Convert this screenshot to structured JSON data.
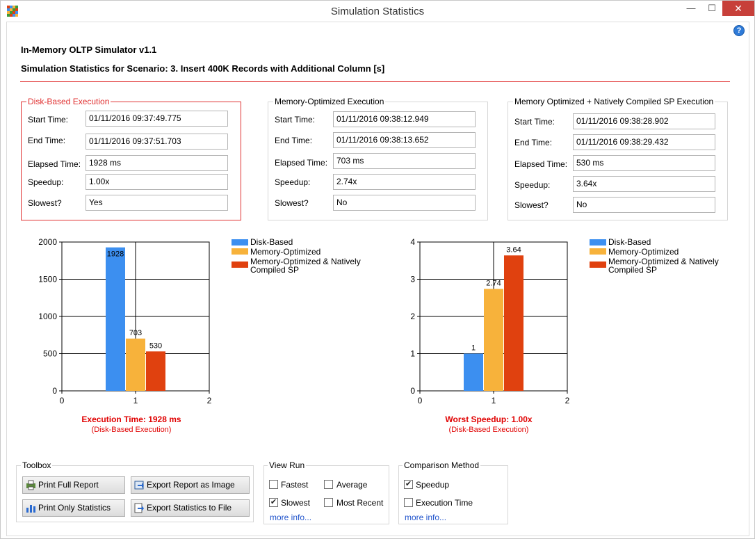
{
  "window": {
    "title": "Simulation Statistics",
    "min_glyph": "—",
    "max_glyph": "☐",
    "close_glyph": "✕"
  },
  "help_glyph": "?",
  "app_title": "In-Memory OLTP Simulator v1.1",
  "scenario_title": "Simulation Statistics for Scenario: 3. Insert 400K Records with Additional Column [s]",
  "labels": {
    "start": "Start Time:",
    "end": "End Time:",
    "elapsed": "Elapsed Time:",
    "speedup": "Speedup:",
    "slowest": "Slowest?"
  },
  "groups": [
    {
      "title": "Disk-Based Execution",
      "start": "01/11/2016 09:37:49.775",
      "end": "01/11/2016 09:37:51.703",
      "elapsed": "1928 ms",
      "speedup": "1.00x",
      "slowest": "Yes"
    },
    {
      "title": "Memory-Optimized Execution",
      "start": "01/11/2016 09:38:12.949",
      "end": "01/11/2016 09:38:13.652",
      "elapsed": "703 ms",
      "speedup": "2.74x",
      "slowest": "No"
    },
    {
      "title": "Memory Optimized + Natively Compiled  SP Execution",
      "start": "01/11/2016 09:38:28.902",
      "end": "01/11/2016 09:38:29.432",
      "elapsed": "530 ms",
      "speedup": "3.64x",
      "slowest": "No"
    }
  ],
  "colors": {
    "disk": "#3c8ff0",
    "mem": "#f7b23b",
    "native": "#e0410f",
    "accent_red": "#e03030"
  },
  "legend": [
    "Disk-Based",
    "Memory-Optimized",
    "Memory-Optimized & Natively Compiled SP"
  ],
  "chart_data": [
    {
      "type": "bar",
      "series": [
        {
          "name": "Disk-Based",
          "values": [
            1928
          ]
        },
        {
          "name": "Memory-Optimized",
          "values": [
            703
          ]
        },
        {
          "name": "Memory-Optimized & Natively Compiled SP",
          "values": [
            530
          ]
        }
      ],
      "data_labels": [
        "1928",
        "703",
        "530"
      ],
      "x_ticks": [
        "0",
        "1",
        "2"
      ],
      "y_ticks": [
        "0",
        "500",
        "1000",
        "1500",
        "2000"
      ],
      "xlim": [
        0,
        2
      ],
      "ylim": [
        0,
        2000
      ],
      "grid": true,
      "legend_position": "right",
      "caption": "Execution Time: 1928 ms",
      "subcaption": "(Disk-Based Execution)"
    },
    {
      "type": "bar",
      "series": [
        {
          "name": "Disk-Based",
          "values": [
            1
          ]
        },
        {
          "name": "Memory-Optimized",
          "values": [
            2.74
          ]
        },
        {
          "name": "Memory-Optimized & Natively Compiled SP",
          "values": [
            3.64
          ]
        }
      ],
      "data_labels": [
        "1",
        "2.74",
        "3.64"
      ],
      "x_ticks": [
        "0",
        "1",
        "2"
      ],
      "y_ticks": [
        "0",
        "1",
        "2",
        "3",
        "4"
      ],
      "xlim": [
        0,
        2
      ],
      "ylim": [
        0,
        4
      ],
      "grid": true,
      "legend_position": "right",
      "caption": "Worst Speedup: 1.00x",
      "subcaption": "(Disk-Based Execution)"
    }
  ],
  "toolbox": {
    "title": "Toolbox",
    "print_full": "Print Full Report",
    "export_image": "Export Report as Image",
    "print_stats": "Print Only Statistics",
    "export_file": "Export Statistics to File"
  },
  "view_run": {
    "title": "View Run",
    "options": [
      {
        "label": "Fastest",
        "checked": false
      },
      {
        "label": "Average",
        "checked": false
      },
      {
        "label": "Slowest",
        "checked": true
      },
      {
        "label": "Most Recent",
        "checked": false
      }
    ],
    "more": "more info..."
  },
  "comparison": {
    "title": "Comparison Method",
    "options": [
      {
        "label": "Speedup",
        "checked": true
      },
      {
        "label": "Execution Time",
        "checked": false
      }
    ],
    "more": "more info..."
  }
}
